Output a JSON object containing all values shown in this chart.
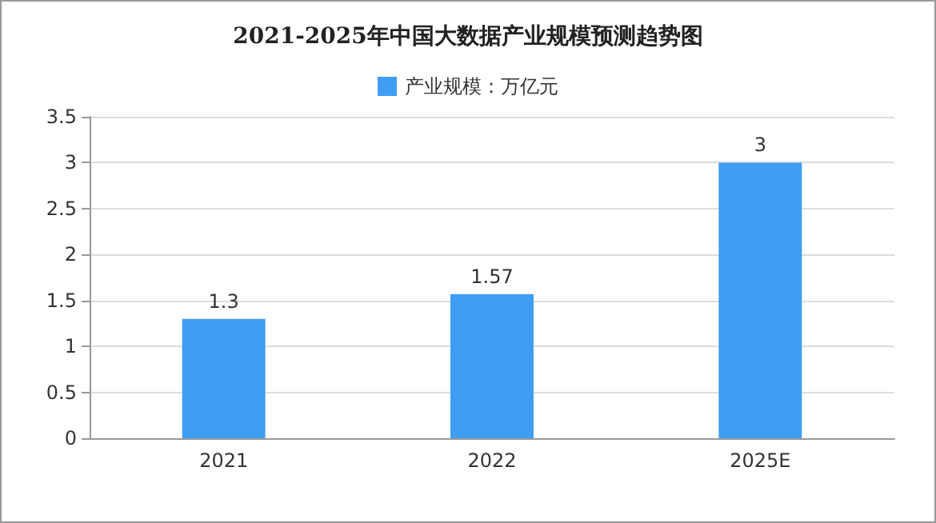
{
  "chart_data": {
    "type": "bar",
    "title": "2021-2025年中国大数据产业规模预测趋势图",
    "categories": [
      "2021",
      "2022",
      "2025E"
    ],
    "series": [
      {
        "name": "产业规模：万亿元",
        "color": "#3f9ef4",
        "values": [
          1.3,
          1.57,
          3
        ]
      }
    ],
    "ylim": [
      0,
      3.5
    ],
    "yticks": [
      0,
      0.5,
      1,
      1.5,
      2,
      2.5,
      3,
      3.5
    ],
    "grid": "y",
    "legend": "top",
    "data_labels": true
  }
}
